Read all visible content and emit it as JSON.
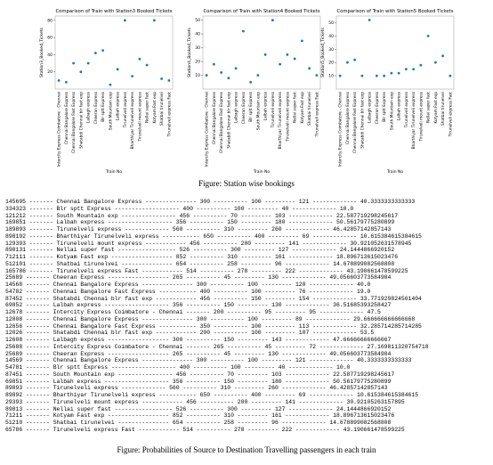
{
  "chart_data": [
    {
      "type": "scatter",
      "title": "Comparison of Train with Station3 Booked Tickets",
      "y_label": "Station3_Booked_Tickets",
      "x_label": "Train No",
      "color": "#1f77b4",
      "categories": [
        "Intercity Express Coimbatore - Chennai",
        "Chennai Bangalore Express",
        "Chennai Bangalore Fast Express",
        "Shatabdi Chennai blr fast exp",
        "Lalbagh express",
        "Cheeran Express",
        "Blr sptt Express",
        "South Mountain exp",
        "Lalbah express",
        "Tirunelveli express",
        "Bharthiyar Tirunelveli express",
        "Tirunelveli mount express",
        "Nellai super fast",
        "Kotyam Fast exp",
        "Shatbai tirunelvei",
        "Tirunelveli express Fast"
      ],
      "values": [
        10,
        8,
        30,
        20,
        30,
        42,
        45,
        5,
        23,
        80,
        15,
        35,
        28,
        80,
        12,
        10
      ],
      "ylim": [
        0,
        85
      ],
      "yticks": [
        20,
        40,
        60,
        80
      ]
    },
    {
      "type": "scatter",
      "title": "Comparison of Train with Station4 Booked Tickets",
      "y_label": "Station4_Booked_Tickets",
      "x_label": "Train No",
      "color": "#1f77b4",
      "categories": [
        "Intercity Express Coimbatore - Chennai",
        "Chennai Bangalore Express",
        "Chennai Bangalore Fast Express",
        "Shatabdi Chennai blr fast exp",
        "Lalbagh express",
        "Cheeran Express",
        "Blr sptt Express",
        "South Mountain exp",
        "Lalbah express",
        "Tirunelveli express",
        "Bharthiyar Tirunelveli express",
        "Tirunelveli mount express",
        "Nellai super fast",
        "Kotyam Fast exp",
        "Shatbai tirunelvei",
        "Tirunelveli express Fast"
      ],
      "values": [
        10,
        18,
        12,
        8,
        15,
        42,
        5,
        10,
        25,
        50,
        18,
        25,
        22,
        35,
        15,
        10
      ],
      "ylim": [
        0,
        53
      ],
      "yticks": [
        10,
        20,
        30,
        40,
        50
      ]
    },
    {
      "type": "scatter",
      "title": "Comparison of Train with Station5 Booked Tickets",
      "y_label": "Station5_Booked_Tickets",
      "x_label": "Train No",
      "color": "#1f77b4",
      "categories": [
        "Intercity Express Coimbatore - Chennai",
        "Chennai Bangalore Express",
        "Chennai Bangalore Fast Express",
        "Shatabdi Chennai blr fast exp",
        "Lalbagh express",
        "Cheeran Express",
        "Blr sptt Express",
        "South Mountain exp",
        "Lalbah express",
        "Tirunelveli express",
        "Bharthiyar Tirunelveli express",
        "Tirunelveli mount express",
        "Nellai super fast",
        "Kotyam Fast exp",
        "Shatbai tirunelvei",
        "Tirunelveli express Fast"
      ],
      "values": [
        10,
        20,
        22,
        10,
        52,
        10,
        10,
        12,
        12,
        15,
        15,
        18,
        40,
        20,
        25,
        10
      ],
      "ylim": [
        0,
        55
      ],
      "yticks": [
        10,
        20,
        30,
        40,
        50
      ]
    }
  ],
  "captions": [
    "Figure: Station wise bookings",
    "Figure: Probabilities of Source to Destination Travelling passengers in each train"
  ],
  "output": {
    "lines": [
      "145695 ------- Chennai Bangalore Express --------------- 300 ---------- 100 --------- 121 ------------- 40.3333333333333",
      "334323 ------- Blr sptt Express ------------------- 400 ---------- 100 --------- 40 ------------- 10.0",
      "121212 ------- South Mountain exp ---------------- 456 ---------- 70 --------- 103 ------------- 22.587719298245617",
      "169851 ------- Lalbah express ------------------- 356 ---------- 150 --------- 180 ------------- 50.56179775280899",
      "189893 ------- Tirunelveli express ------------- 560 ---------- 310 --------- 260 ------------- 46.42857142857143",
      "898192 ------- Bharthiyar Tirunelveli express ----------- 650 ---------- 400 --------- 69 ------------- 10.615384615384615",
      "129393 ------- Tirunelveli mount express ------------ 456 ---------- 200 --------- 141 ------------- 30.921052631578945",
      "898131 ------- Nellai super fast ----------------- 526 ---------- 300 --------- 127 ------------- 24.1444866920152",
      "712111 ------- Kotyam Fast exp ------------------ 852 ---------- 310 --------- 161 ------------- 18.896713615023476",
      "512101 ------- Shatbai tirunelvei --------------- 654 ---------- 258 --------- 96 ------------- 14.678899082568808",
      "165786 ------- Tirunelveli express Fast ------------ 514 ---------- 278 --------- 222 ------------- 43.190661478599225",
      "25689 ------- Cheeran Express ------------------ 265 ---------- 45 --------- 130 ------------- 49.056603773584904",
      "14568 ------- Chennai Bangalore Express --------------- 300 ---------- 100 --------- 120 ------------- 40.0",
      "54782 ------- Chennai Bangalore Fast Express ----------- 400 ---------- 100 --------- 76 ------------- 19.0",
      "87452 ------- Shatabdi Chennai blr fast exp ------------ 456 ---------- 150 --------- 154 ------------- 33.771929824561404",
      "69852 ------- Lalbah express ------------------- 356 ---------- 150 --------- 130 ------------- 36.51685393258427",
      "12678 ------- Intercity Express Coimbatore - Chennai ------- 200 ---------- 95 --------- 95 ------------- 47.5",
      "12008 ------- Chennai Bangalore Express --------------- 300 ---------- 100 --------- 89 ------------- 29.666666666666668",
      "12656 ------- Chennai Bangalore Fast Express ----------- 350 ---------- 100 --------- 113 ------------- 32.285714285714285",
      "12026 ------- Shatabdi Chennai blr fast exp ------------ 200 ---------- 100 --------- 107 ------------- 53.5",
      "12608 ------- Lalbagh express ------------------ 300 ---------- 150 --------- 143 ------------- 47.66666666666667",
      "25688 ------- Intercity Express Coimbatore - Chennai ------- 265 ---------- 45 --------- 72 ------------- 27.169811320754718",
      "25689 ------- Cheeran Express ------------------ 265 ---------- 45 --------- 130 ------------- 49.056603773584904",
      "14569 ------- Chennai Bangalore Express --------------- 300 ---------- 100 --------- 121 ------------- 40.3333333333333",
      "54781 ------- Blr sptt Express ------------------- 400 ---------- 100 --------- 40 ------------- 10.0",
      "87451 ------- South Mountain exp ---------------- 456 ---------- 70 --------- 103 ------------- 22.587719298245617",
      "69851 ------- Lalbah express ------------------- 356 ---------- 150 --------- 180 ------------- 50.56179775280899",
      "89893 ------- Tirunelveli express ------------- 560 ---------- 310 --------- 260 ------------- 46.42857142857143",
      "89892 ------- Bharthiyar Tirunelveli express ----------- 650 ---------- 400 --------- 69 ------------- 10.615384615384615",
      "29393 ------- Tirunelveli mount express ------------ 456 ---------- 200 --------- 141 ------------- 30.92105263157895",
      "89813 ------- Nellai super fast ----------------- 526 ---------- 300 --------- 127 ------------- 24.1444866920152",
      "71211 ------- Kotyam Fast exp ------------------ 852 ---------- 310 --------- 161 ------------- 18.896713615023476",
      "51210 ------- Shatbai tirunelvei --------------- 654 ---------- 258 --------- 96 ------------- 14.678899082568808",
      "65786 ------- Tirunelveli express Fast ------------ 514 ---------- 278 --------- 222 ------------- 43.190661478599225"
    ]
  }
}
